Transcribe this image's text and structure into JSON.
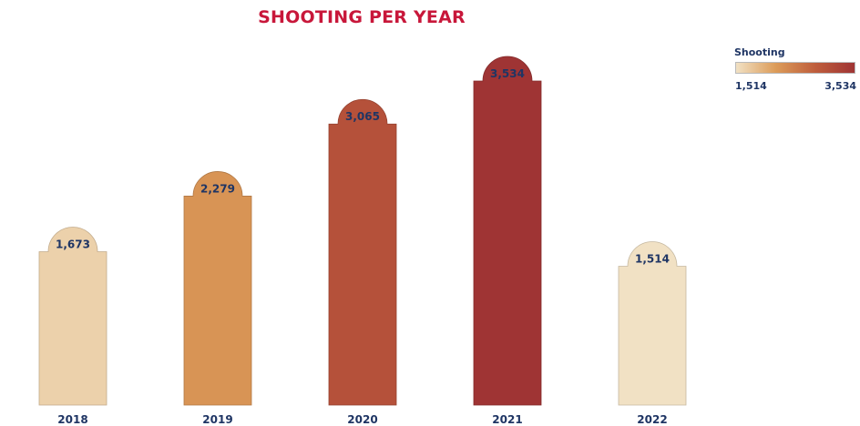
{
  "chart_data": {
    "type": "bar",
    "title": "SHOOTING PER YEAR",
    "categories": [
      "2018",
      "2019",
      "2020",
      "2021",
      "2022"
    ],
    "values": [
      1673,
      2279,
      3065,
      3534,
      1514
    ],
    "value_labels": [
      "1,673",
      "2,279",
      "3,065",
      "3,534",
      "1,514"
    ],
    "xlabel": "",
    "ylabel": "",
    "ylim": [
      0,
      3534
    ],
    "grid": false,
    "color_scale": {
      "title": "Shooting",
      "min_label": "1,514",
      "max_label": "3,534",
      "min": 1514,
      "max": 3534,
      "colors": [
        "#f1e1c4",
        "#dc9c59",
        "#bf5e3c",
        "#9f3434"
      ]
    },
    "legend_placement": "top-right"
  }
}
